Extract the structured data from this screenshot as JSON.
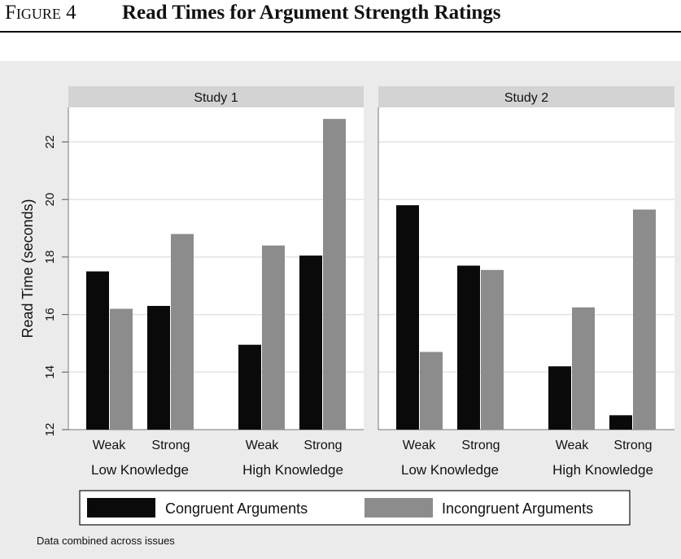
{
  "figure": {
    "label": "Figure 4",
    "title": "Read Times for Argument Strength Ratings"
  },
  "chart_data": {
    "type": "bar",
    "ylabel": "Read Time (seconds)",
    "ylim": [
      12,
      23.2
    ],
    "yticks": [
      12,
      14,
      16,
      18,
      20,
      22
    ],
    "grid": true,
    "legend_placement": "bottom",
    "note": "Data combined across issues",
    "panels": [
      {
        "title": "Study 1",
        "groups": [
          {
            "label": "Low Knowledge",
            "categories": [
              "Weak",
              "Strong"
            ],
            "series": [
              {
                "name": "Congruent Arguments",
                "values": [
                  17.5,
                  16.3
                ]
              },
              {
                "name": "Incongruent Arguments",
                "values": [
                  16.2,
                  18.8
                ]
              }
            ]
          },
          {
            "label": "High Knowledge",
            "categories": [
              "Weak",
              "Strong"
            ],
            "series": [
              {
                "name": "Congruent Arguments",
                "values": [
                  14.95,
                  18.05
                ]
              },
              {
                "name": "Incongruent Arguments",
                "values": [
                  18.4,
                  22.8
                ]
              }
            ]
          }
        ]
      },
      {
        "title": "Study 2",
        "groups": [
          {
            "label": "Low Knowledge",
            "categories": [
              "Weak",
              "Strong"
            ],
            "series": [
              {
                "name": "Congruent Arguments",
                "values": [
                  19.8,
                  17.7
                ]
              },
              {
                "name": "Incongruent Arguments",
                "values": [
                  14.7,
                  17.55
                ]
              }
            ]
          },
          {
            "label": "High Knowledge",
            "categories": [
              "Weak",
              "Strong"
            ],
            "series": [
              {
                "name": "Congruent Arguments",
                "values": [
                  14.2,
                  12.5
                ]
              },
              {
                "name": "Incongruent Arguments",
                "values": [
                  16.25,
                  19.65
                ]
              }
            ]
          }
        ]
      }
    ],
    "legend": [
      {
        "name": "Congruent Arguments",
        "color": "#0a0a0a"
      },
      {
        "name": "Incongruent Arguments",
        "color": "#8c8c8c"
      }
    ],
    "colors": {
      "congruent": "#0a0a0a",
      "incongruent": "#8c8c8c",
      "strip": "#d3d3d3",
      "panel": "#ffffff",
      "background": "#ebebeb"
    }
  }
}
